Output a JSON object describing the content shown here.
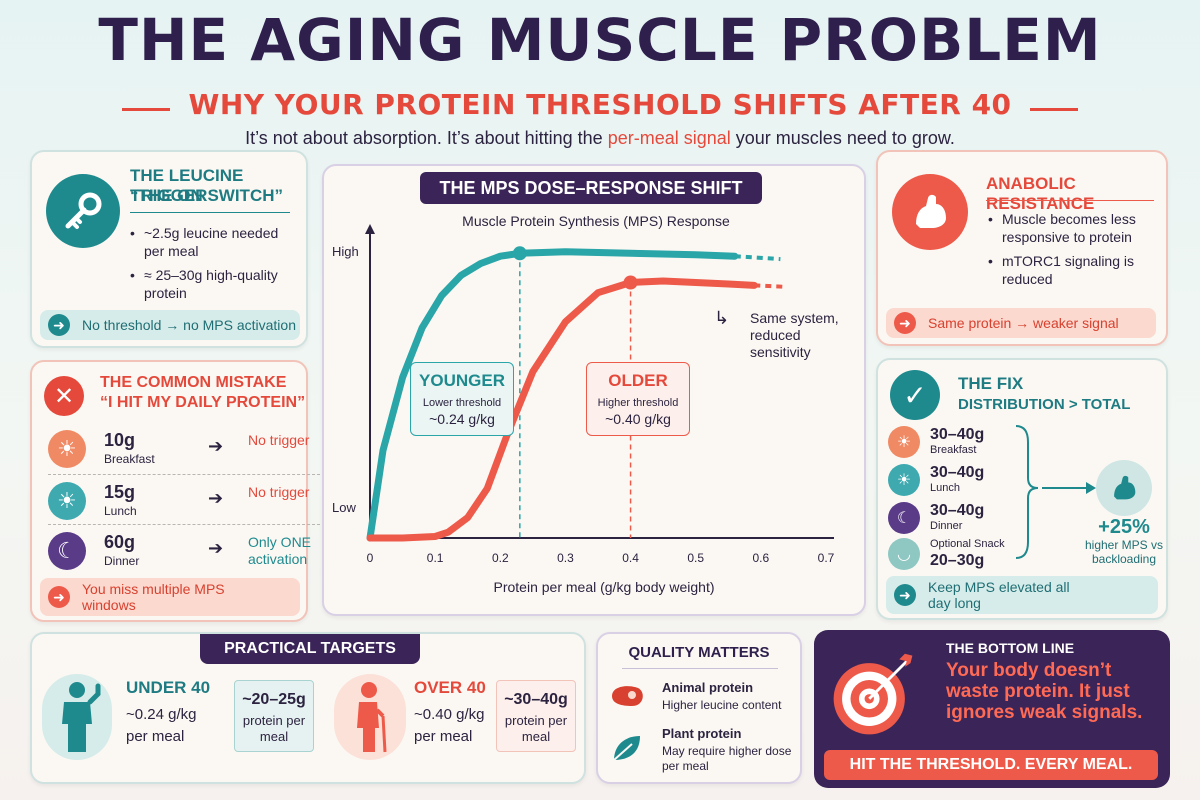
{
  "header": {
    "title": "THE AGING MUSCLE PROBLEM",
    "subtitle": "WHY YOUR PROTEIN THRESHOLD SHIFTS AFTER 40",
    "tagline_pre": "It’s not about absorption. It’s about hitting the",
    "tagline_highlight": "per-meal signal",
    "tagline_post": "your muscles need to grow."
  },
  "leucine": {
    "title": "THE LEUCINE TRIGGER",
    "subtitle": "“THE ON SWITCH”",
    "bullet1": "~2.5g leucine needed per meal",
    "bullet2": "≈ 25–30g high-quality protein",
    "note": "No threshold → no MPS activation",
    "icon": "key-icon"
  },
  "mistake": {
    "title": "THE COMMON MISTAKE",
    "subtitle": "“I HIT MY DAILY PROTEIN”",
    "meals": [
      {
        "amount": "10g",
        "name": "Breakfast",
        "result": "No trigger"
      },
      {
        "amount": "15g",
        "name": "Lunch",
        "result": "No trigger"
      },
      {
        "amount": "60g",
        "name": "Dinner",
        "result": "Only ONE activation"
      }
    ],
    "note": "You miss multiple MPS windows"
  },
  "chart_header": {
    "banner": "THE MPS DOSE–RESPONSE SHIFT",
    "younger_label": "YOUNGER",
    "younger_sub": "Lower threshold",
    "younger_value": "~0.24 g/kg",
    "older_label": "OLDER",
    "older_sub": "Higher threshold",
    "older_value": "~0.40 g/kg",
    "annotation": "Same system, reduced sensitivity"
  },
  "chart_data": {
    "type": "line",
    "title": "Muscle Protein Synthesis (MPS) Response",
    "xlabel": "Protein per meal (g/kg body weight)",
    "ylabel": "",
    "x_ticks": [
      "0",
      "0.1",
      "0.2",
      "0.3",
      "0.4",
      "0.5",
      "0.6",
      "0.7"
    ],
    "y_tick_labels": [
      "High",
      "Low"
    ],
    "xlim": [
      0,
      0.7
    ],
    "ylim": [
      0,
      1
    ],
    "grid": false,
    "series": [
      {
        "name": "YOUNGER",
        "color": "#2aa5a8",
        "threshold": 0.23,
        "x": [
          0,
          0.02,
          0.05,
          0.08,
          0.11,
          0.14,
          0.17,
          0.2,
          0.23,
          0.3,
          0.4,
          0.5,
          0.56,
          0.63
        ],
        "y": [
          0,
          0.3,
          0.55,
          0.72,
          0.83,
          0.9,
          0.94,
          0.965,
          0.975,
          0.98,
          0.975,
          0.97,
          0.965,
          0.955
        ],
        "solid_until": 0.56
      },
      {
        "name": "OLDER",
        "color": "#ee5a4a",
        "threshold": 0.4,
        "x": [
          0,
          0.05,
          0.1,
          0.12,
          0.15,
          0.18,
          0.21,
          0.25,
          0.3,
          0.35,
          0.4,
          0.45,
          0.5,
          0.55,
          0.59,
          0.64
        ],
        "y": [
          0,
          0,
          0.005,
          0.02,
          0.07,
          0.17,
          0.35,
          0.57,
          0.74,
          0.84,
          0.875,
          0.88,
          0.875,
          0.87,
          0.865,
          0.86
        ],
        "solid_until": 0.59
      }
    ]
  },
  "anabolic": {
    "title": "ANABOLIC RESISTANCE",
    "bullet1": "Muscle becomes less responsive to protein",
    "bullet2": "mTORC1 signaling is reduced",
    "note": "Same protein → weaker signal"
  },
  "fix": {
    "title": "THE FIX",
    "subtitle": "DISTRIBUTION > TOTAL",
    "meals": [
      {
        "amount": "30–40g",
        "name": "Breakfast"
      },
      {
        "amount": "30–40g",
        "name": "Lunch"
      },
      {
        "amount": "30–40g",
        "name": "Dinner"
      },
      {
        "amount": "20–30g",
        "name": "Optional Snack"
      }
    ],
    "result_value": "+25%",
    "result_sub": "higher MPS vs backloading",
    "note": "Keep MPS elevated all day long"
  },
  "targets": {
    "title": "PRACTICAL TARGETS",
    "under_label": "UNDER 40",
    "under_value": "~0.24 g/kg per meal",
    "under_box_value": "~20–25g",
    "under_box_sub": "protein per meal",
    "over_label": "OVER 40",
    "over_value": "~0.40 g/kg per meal",
    "over_box_value": "~30–40g",
    "over_box_sub": "protein per meal"
  },
  "quality": {
    "title": "QUALITY MATTERS",
    "animal_title": "Animal protein",
    "animal_sub": "Higher leucine content",
    "plant_title": "Plant protein",
    "plant_sub": "May require higher dose per meal"
  },
  "bottom": {
    "title": "THE BOTTOM LINE",
    "text": "Your body doesn’t waste protein. It just ignores weak signals.",
    "banner": "HIT THE THRESHOLD. EVERY MEAL."
  },
  "colors": {
    "teal": "#2aa5a8",
    "red": "#ee5a4a",
    "purple": "#2e1f4d"
  }
}
